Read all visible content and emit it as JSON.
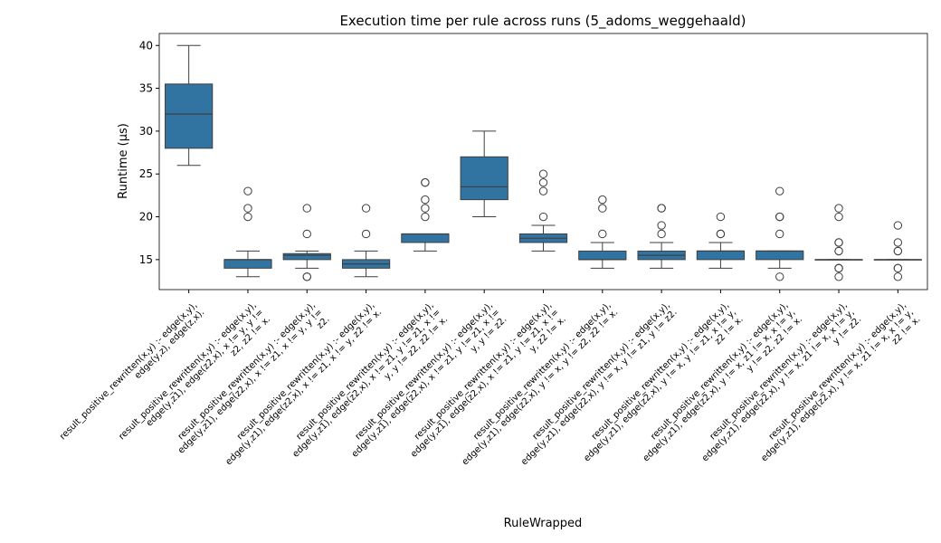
{
  "chart_data": {
    "type": "box",
    "title": "Execution time per rule across runs (5_adoms_weggehaald)",
    "x_label": "RuleWrapped",
    "y_label": "Runtime (μs)",
    "color": "#3274a1",
    "ylim": [
      11.5,
      41.4
    ],
    "yticks": [
      15,
      20,
      25,
      30,
      35,
      40
    ],
    "categories": [
      [
        "result_positive_rewritten(x,y) :-    edge(x,y),",
        "edge(y,z),    edge(z,x)."
      ],
      [
        "result_positive_rewritten(x,y) :-    edge(x,y),",
        "edge(y,z1),   edge(z2,x),   x != y,   y !=",
        "z2,   z2 != x."
      ],
      [
        "result_positive_rewritten(x,y) :-    edge(x,y),",
        "edge(y,z1),   edge(z2,x),   x != z1,   x != y,   y !=",
        "z2."
      ],
      [
        "result_positive_rewritten(x,y) :-    edge(x,y),",
        "edge(y,z1),   edge(z2,x),   x != z1,   x != y,   z2 != x."
      ],
      [
        "result_positive_rewritten(x,y) :-    edge(x,y),",
        "edge(y,z1),   edge(z2,x),   x != z1,   y != z1,   x !=",
        "y,   y != z2,   z2 != x."
      ],
      [
        "result_positive_rewritten(x,y) :-    edge(x,y),",
        "edge(y,z1),   edge(z2,x),   x != z1,   y != z1,   x !=",
        "y,   y != z2."
      ],
      [
        "result_positive_rewritten(x,y) :-    edge(x,y),",
        "edge(y,z1),   edge(z2,x),   x != z1,   y != z1,   x !=",
        "y,   z2 != x."
      ],
      [
        "result_positive_rewritten(x,y) :-    edge(x,y),",
        "edge(y,z1),   edge(z2,x),   y != x,   y != z2,   z2 != x."
      ],
      [
        "result_positive_rewritten(x,y) :-    edge(x,y),",
        "edge(y,z1),   edge(z2,x),   y != x,   y != z1,   y != z2."
      ],
      [
        "result_positive_rewritten(x,y) :-    edge(x,y),",
        "edge(y,z1),   edge(z2,x),   y != x,   y != z1,   x != y,",
        "z2 != x."
      ],
      [
        "result_positive_rewritten(x,y) :-    edge(x,y),",
        "edge(y,z1),   edge(z2,x),   y != x,   z1 != x,   x != y,",
        "y != z2,   z2 != x."
      ],
      [
        "result_positive_rewritten(x,y) :-    edge(x,y),",
        "edge(y,z1),   edge(z2,x),   y != x,   z1 != x,   x != y,",
        "y != z2."
      ],
      [
        "result_positive_rewritten(x,y) :-    edge(x,y),",
        "edge(y,z1),   edge(z2,x),   y != x,   z1 != x,   x != y,",
        "z2 != x."
      ]
    ],
    "boxes": [
      {
        "whislo": 26,
        "q1": 28,
        "med": 32,
        "q3": 35.5,
        "whishi": 40,
        "fliers": []
      },
      {
        "whislo": 13,
        "q1": 14,
        "med": 15,
        "q3": 15,
        "whishi": 16,
        "fliers": [
          20,
          21,
          23
        ]
      },
      {
        "whislo": 14,
        "q1": 15,
        "med": 15.5,
        "q3": 15.7,
        "whishi": 16,
        "fliers": [
          13,
          13,
          18,
          21
        ]
      },
      {
        "whislo": 13,
        "q1": 14,
        "med": 14.5,
        "q3": 15,
        "whishi": 16,
        "fliers": [
          18,
          21
        ]
      },
      {
        "whislo": 16,
        "q1": 17,
        "med": 18,
        "q3": 18,
        "whishi": 18,
        "fliers": [
          20,
          21,
          22,
          24,
          24
        ]
      },
      {
        "whislo": 20,
        "q1": 22,
        "med": 23.5,
        "q3": 27,
        "whishi": 30,
        "fliers": []
      },
      {
        "whislo": 16,
        "q1": 17,
        "med": 17.5,
        "q3": 18,
        "whishi": 19,
        "fliers": [
          20,
          23,
          24,
          25
        ]
      },
      {
        "whislo": 14,
        "q1": 15,
        "med": 15,
        "q3": 16,
        "whishi": 17,
        "fliers": [
          18,
          21,
          22
        ]
      },
      {
        "whislo": 14,
        "q1": 15,
        "med": 15.5,
        "q3": 16,
        "whishi": 17,
        "fliers": [
          18,
          19,
          21,
          21
        ]
      },
      {
        "whislo": 14,
        "q1": 15,
        "med": 16,
        "q3": 16,
        "whishi": 17,
        "fliers": [
          18,
          18,
          20
        ]
      },
      {
        "whislo": 14,
        "q1": 15,
        "med": 16,
        "q3": 16,
        "whishi": 16,
        "fliers": [
          13,
          18,
          20,
          20,
          23
        ]
      },
      {
        "whislo": 15,
        "q1": 15,
        "med": 15,
        "q3": 15,
        "whishi": 15,
        "fliers": [
          13,
          14,
          14,
          14,
          16,
          16,
          17,
          17,
          20,
          21
        ]
      },
      {
        "whislo": 15,
        "q1": 15,
        "med": 15,
        "q3": 15,
        "whishi": 15,
        "fliers": [
          13,
          14,
          14,
          16,
          16,
          17,
          19
        ]
      }
    ]
  }
}
